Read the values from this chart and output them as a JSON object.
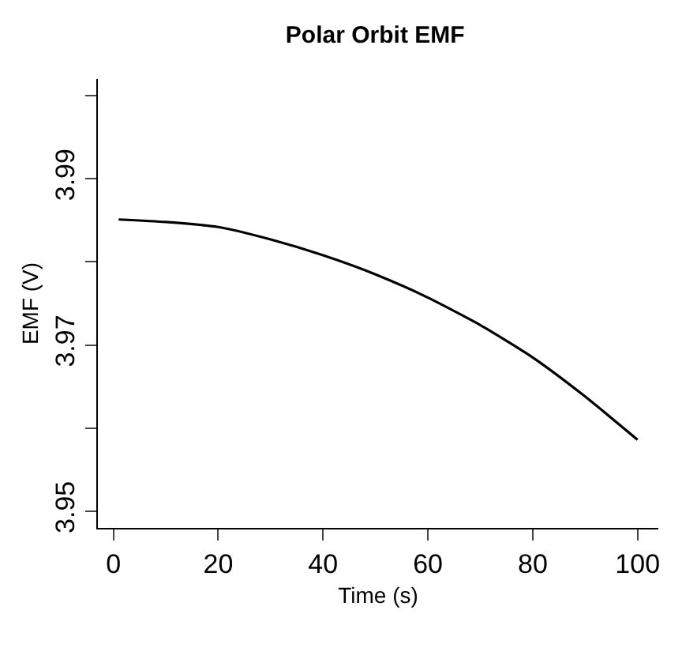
{
  "chart_data": {
    "type": "line",
    "title": "Polar Orbit EMF",
    "xlabel": "Time (s)",
    "ylabel": "EMF (V)",
    "x": [
      1,
      10,
      20,
      30,
      40,
      50,
      60,
      70,
      80,
      90,
      100
    ],
    "series": [
      {
        "color": "#000000",
        "values": [
          3.9851,
          3.9848,
          3.9842,
          3.9827,
          3.9808,
          3.9785,
          3.9757,
          3.9724,
          3.9685,
          3.9638,
          3.9586
        ]
      }
    ],
    "xlim": [
      -2.96,
      103.96
    ],
    "ylim": [
      3.948,
      4.002
    ],
    "xticks": [
      0,
      20,
      40,
      60,
      80,
      100
    ],
    "yticks": [
      3.95,
      {
        "value": 3.96,
        "label": null
      },
      3.97,
      {
        "value": 3.98,
        "label": null
      },
      3.99,
      {
        "value": 4.0,
        "label": null
      }
    ],
    "legend": false,
    "marker": "none",
    "line_style": "solid"
  }
}
